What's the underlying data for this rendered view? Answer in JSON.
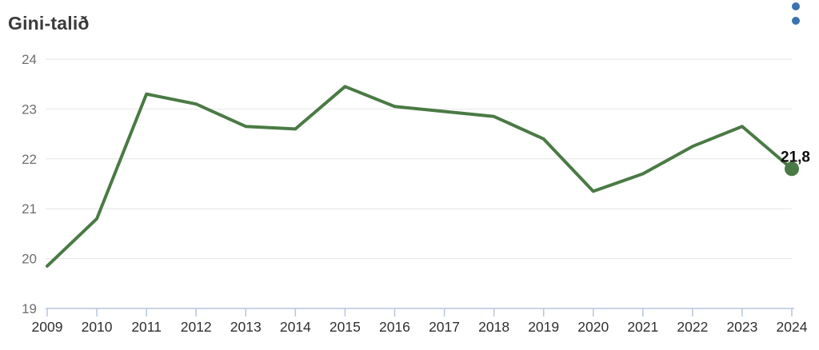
{
  "header": {
    "title": "Gini-talið"
  },
  "menu": {
    "icon": "kebab-menu-icon"
  },
  "colors": {
    "line": "#4a7a44",
    "marker": "#4a7a44",
    "gridline": "#e6e6e6",
    "axis": "#b6c7dc",
    "y_label": "#6f6f6f",
    "x_label": "#2f2f2f",
    "title": "#3b3b3b",
    "end_label": "#0d0d0d",
    "menu_dot": "#3b73ad"
  },
  "chart_data": {
    "type": "line",
    "title": "Gini-talið",
    "x": [
      "2009",
      "2010",
      "2011",
      "2012",
      "2013",
      "2014",
      "2015",
      "2016",
      "2017",
      "2018",
      "2019",
      "2020",
      "2021",
      "2022",
      "2023",
      "2024"
    ],
    "values": [
      19.85,
      20.8,
      23.3,
      23.1,
      22.65,
      22.6,
      23.45,
      23.05,
      22.95,
      22.85,
      22.4,
      21.35,
      21.7,
      22.25,
      22.65,
      21.8
    ],
    "xlabel": "",
    "ylabel": "",
    "ylim": [
      19,
      24
    ],
    "yticks": [
      19,
      20,
      21,
      22,
      23,
      24
    ],
    "grid": "horizontal",
    "legend": "none",
    "end_label": "21,8",
    "end_value": 21.8
  }
}
